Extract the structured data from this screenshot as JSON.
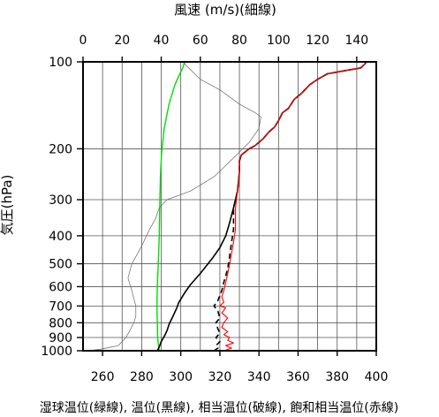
{
  "chart_data": {
    "type": "line",
    "title_top": "風速 (m/s)(細線)",
    "ylabel": "気圧(hPa)",
    "xlabel": "湿球温位(緑線), 温位(黒線), 相当温位(破線), 飽和相当温位(赤線)",
    "y_scale": "log",
    "ylim": [
      1000,
      100
    ],
    "xlim_bottom": [
      250,
      400
    ],
    "xlim_top": [
      0,
      150
    ],
    "y_ticks": [
      100,
      200,
      300,
      400,
      500,
      600,
      700,
      800,
      900,
      1000
    ],
    "y_gridlines": [
      100,
      200,
      300,
      400,
      500,
      600,
      700,
      800,
      900,
      1000
    ],
    "x_bottom_ticks": [
      260,
      280,
      300,
      320,
      340,
      360,
      380,
      400
    ],
    "x_top_ticks": [
      0,
      20,
      40,
      60,
      80,
      100,
      120,
      140
    ],
    "x_bottom_gridlines": [
      260,
      270,
      280,
      290,
      300,
      310,
      320,
      330,
      340,
      350,
      360,
      370,
      380,
      390
    ],
    "grid": true,
    "series": [
      {
        "key": "wet_bulb",
        "axis": "bottom",
        "color": "#00dd00",
        "dash": "",
        "width": 1.4,
        "points": [
          [
            289,
            1000
          ],
          [
            288.5,
            950
          ],
          [
            288.2,
            900
          ],
          [
            288,
            800
          ],
          [
            287.8,
            700
          ],
          [
            288,
            600
          ],
          [
            288.5,
            500
          ],
          [
            289,
            400
          ],
          [
            289.3,
            300
          ],
          [
            289.6,
            250
          ],
          [
            290.2,
            205
          ],
          [
            291.5,
            170
          ],
          [
            294,
            140
          ],
          [
            297,
            120
          ],
          [
            299.5,
            110
          ],
          [
            301,
            105
          ],
          [
            302,
            100
          ]
        ]
      },
      {
        "key": "wind_speed",
        "axis": "top",
        "color": "#666666",
        "dash": "",
        "width": 0.7,
        "points": [
          [
            3,
            1000
          ],
          [
            10,
            985
          ],
          [
            18,
            960
          ],
          [
            22,
            900
          ],
          [
            24,
            850
          ],
          [
            26,
            800
          ],
          [
            27,
            760
          ],
          [
            27,
            700
          ],
          [
            26,
            660
          ],
          [
            25,
            620
          ],
          [
            23,
            560
          ],
          [
            25,
            500
          ],
          [
            28,
            460
          ],
          [
            31,
            420
          ],
          [
            34,
            380
          ],
          [
            37,
            350
          ],
          [
            39,
            320
          ],
          [
            43,
            300
          ],
          [
            55,
            280
          ],
          [
            67,
            250
          ],
          [
            77,
            215
          ],
          [
            85,
            190
          ],
          [
            90,
            170
          ],
          [
            91,
            155
          ],
          [
            88,
            150
          ],
          [
            80,
            140
          ],
          [
            70,
            125
          ],
          [
            60,
            115
          ],
          [
            54,
            105
          ],
          [
            51,
            100
          ]
        ]
      },
      {
        "key": "potential_temp",
        "axis": "bottom",
        "color": "#000000",
        "dash": "",
        "width": 1.6,
        "points": [
          [
            288,
            1000
          ],
          [
            289,
            970
          ],
          [
            290,
            930
          ],
          [
            292,
            880
          ],
          [
            293,
            850
          ],
          [
            294,
            810
          ],
          [
            296,
            760
          ],
          [
            298,
            710
          ],
          [
            299,
            680
          ],
          [
            302,
            630
          ],
          [
            305,
            590
          ],
          [
            310,
            540
          ],
          [
            316,
            480
          ],
          [
            320,
            440
          ],
          [
            323,
            400
          ],
          [
            325,
            360
          ],
          [
            327,
            320
          ],
          [
            328,
            300
          ],
          [
            329,
            280
          ],
          [
            329.5,
            260
          ],
          [
            330,
            240
          ],
          [
            330,
            220
          ],
          [
            331,
            210
          ],
          [
            335,
            200
          ],
          [
            338,
            195
          ],
          [
            342,
            185
          ],
          [
            345,
            175
          ],
          [
            348,
            168
          ],
          [
            350,
            160
          ],
          [
            352,
            150
          ],
          [
            355,
            145
          ],
          [
            358,
            135
          ],
          [
            362,
            128
          ],
          [
            366,
            120
          ],
          [
            370,
            115
          ],
          [
            375,
            110
          ],
          [
            385,
            107
          ],
          [
            392,
            105
          ],
          [
            394,
            102
          ],
          [
            395,
            100
          ]
        ]
      },
      {
        "key": "equiv_potential_temp",
        "axis": "bottom",
        "color": "#000000",
        "dash": "6,4",
        "width": 1.6,
        "points": [
          [
            317,
            1000
          ],
          [
            319,
            980
          ],
          [
            318,
            960
          ],
          [
            320,
            930
          ],
          [
            318,
            900
          ],
          [
            320,
            870
          ],
          [
            319,
            840
          ],
          [
            318,
            800
          ],
          [
            320,
            770
          ],
          [
            319,
            730
          ],
          [
            317,
            700
          ],
          [
            319,
            670
          ],
          [
            321,
            620
          ],
          [
            322,
            580
          ],
          [
            324,
            520
          ],
          [
            325,
            470
          ],
          [
            326,
            420
          ],
          [
            327,
            380
          ],
          [
            327,
            350
          ],
          [
            327,
            320
          ],
          [
            328,
            300
          ],
          [
            329,
            280
          ],
          [
            329.5,
            260
          ],
          [
            330,
            240
          ],
          [
            330,
            220
          ],
          [
            331,
            210
          ],
          [
            335,
            200
          ],
          [
            338,
            195
          ],
          [
            342,
            185
          ],
          [
            345,
            175
          ],
          [
            348,
            168
          ],
          [
            350,
            160
          ],
          [
            352,
            150
          ],
          [
            355,
            145
          ],
          [
            358,
            135
          ],
          [
            362,
            128
          ],
          [
            366,
            120
          ],
          [
            370,
            115
          ],
          [
            375,
            110
          ],
          [
            385,
            107
          ],
          [
            392,
            105
          ],
          [
            394,
            102
          ],
          [
            395,
            100
          ]
        ]
      },
      {
        "key": "sat_equiv_potential_temp",
        "axis": "bottom",
        "color": "#ff0000",
        "dash": "",
        "width": 1.1,
        "points": [
          [
            322,
            1000
          ],
          [
            326,
            980
          ],
          [
            323,
            960
          ],
          [
            327,
            940
          ],
          [
            324,
            920
          ],
          [
            325,
            900
          ],
          [
            322,
            880
          ],
          [
            324,
            860
          ],
          [
            321,
            830
          ],
          [
            322,
            800
          ],
          [
            324,
            770
          ],
          [
            321,
            740
          ],
          [
            323,
            710
          ],
          [
            320,
            700
          ],
          [
            322,
            680
          ],
          [
            321,
            650
          ],
          [
            322,
            620
          ],
          [
            323,
            580
          ],
          [
            324,
            540
          ],
          [
            325,
            500
          ],
          [
            326,
            460
          ],
          [
            327,
            420
          ],
          [
            328,
            380
          ],
          [
            328,
            350
          ],
          [
            328,
            320
          ],
          [
            328.5,
            300
          ],
          [
            329,
            280
          ],
          [
            329.5,
            260
          ],
          [
            330,
            240
          ],
          [
            330,
            220
          ],
          [
            331,
            210
          ],
          [
            335,
            200
          ],
          [
            338,
            195
          ],
          [
            342,
            185
          ],
          [
            345,
            175
          ],
          [
            348,
            168
          ],
          [
            350,
            160
          ],
          [
            352,
            150
          ],
          [
            355,
            145
          ],
          [
            358,
            135
          ],
          [
            362,
            128
          ],
          [
            366,
            120
          ],
          [
            370,
            115
          ],
          [
            375,
            110
          ],
          [
            385,
            107
          ],
          [
            392,
            105
          ],
          [
            394,
            102
          ],
          [
            395,
            100
          ]
        ]
      }
    ]
  }
}
